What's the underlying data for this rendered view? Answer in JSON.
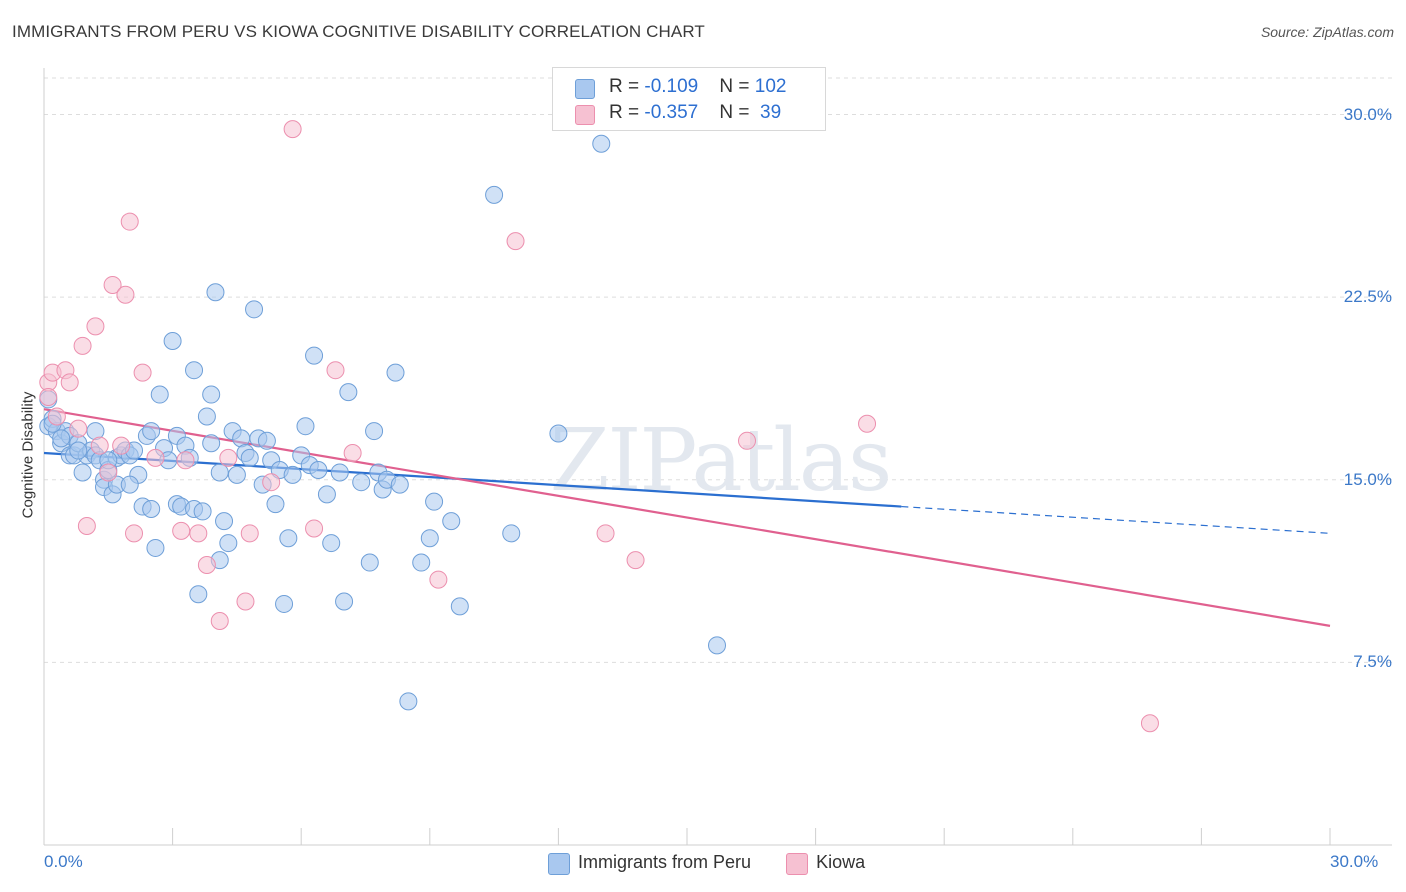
{
  "title": "IMMIGRANTS FROM PERU VS KIOWA COGNITIVE DISABILITY CORRELATION CHART",
  "source": "Source: ZipAtlas.com",
  "watermark": "ZIPatlas",
  "colors": {
    "blue_fill": "#a9c8ef",
    "blue_stroke": "#6e9fd8",
    "blue_line": "#2b6fd0",
    "pink_fill": "#f6c1d2",
    "pink_stroke": "#ec8fae",
    "pink_line": "#e0608f",
    "tick_text": "#3b78c8",
    "grid": "#dddddd"
  },
  "legend_top": {
    "rows": [
      {
        "r_label": "R = ",
        "r_value": "-0.109",
        "n_label": "N = ",
        "n_value": "102"
      },
      {
        "r_label": "R = ",
        "r_value": "-0.357",
        "n_label": "N = ",
        "n_value": " 39"
      }
    ]
  },
  "chart_data": {
    "type": "scatter",
    "title": "IMMIGRANTS FROM PERU VS KIOWA COGNITIVE DISABILITY CORRELATION CHART",
    "xlabel": "",
    "ylabel": "Cognitive Disability",
    "xlim": [
      0,
      30
    ],
    "ylim": [
      0,
      31.5
    ],
    "x_tick_labels": [
      "0.0%",
      "30.0%"
    ],
    "y_ticks": [
      7.5,
      15.0,
      22.5,
      30.0
    ],
    "y_tick_labels": [
      "7.5%",
      "15.0%",
      "22.5%",
      "30.0%"
    ],
    "grid": true,
    "legend_position": "bottom-center",
    "series": [
      {
        "name": "Immigrants from Peru",
        "color": "blue",
        "points": [
          [
            0.1,
            18.3
          ],
          [
            0.1,
            17.2
          ],
          [
            0.2,
            17.5
          ],
          [
            0.3,
            17.0
          ],
          [
            0.4,
            16.5
          ],
          [
            0.5,
            17.0
          ],
          [
            0.6,
            16.8
          ],
          [
            0.6,
            16.0
          ],
          [
            0.7,
            16.0
          ],
          [
            0.8,
            16.5
          ],
          [
            0.9,
            15.3
          ],
          [
            1.0,
            16.0
          ],
          [
            1.1,
            16.2
          ],
          [
            1.2,
            17.0
          ],
          [
            1.2,
            16.0
          ],
          [
            1.3,
            15.8
          ],
          [
            1.4,
            15.0
          ],
          [
            1.4,
            14.7
          ],
          [
            1.5,
            15.4
          ],
          [
            1.6,
            14.4
          ],
          [
            1.7,
            15.9
          ],
          [
            1.7,
            14.8
          ],
          [
            1.8,
            16.0
          ],
          [
            1.9,
            16.2
          ],
          [
            2.0,
            16.0
          ],
          [
            2.1,
            16.2
          ],
          [
            2.2,
            15.2
          ],
          [
            2.3,
            13.9
          ],
          [
            2.4,
            16.8
          ],
          [
            2.5,
            17.0
          ],
          [
            2.5,
            13.8
          ],
          [
            2.6,
            12.2
          ],
          [
            2.7,
            18.5
          ],
          [
            2.8,
            16.3
          ],
          [
            2.9,
            15.8
          ],
          [
            3.0,
            20.7
          ],
          [
            3.1,
            14.0
          ],
          [
            3.1,
            16.8
          ],
          [
            3.2,
            13.9
          ],
          [
            3.3,
            16.4
          ],
          [
            3.4,
            15.9
          ],
          [
            3.5,
            13.8
          ],
          [
            3.5,
            19.5
          ],
          [
            3.6,
            10.3
          ],
          [
            3.7,
            13.7
          ],
          [
            3.8,
            17.6
          ],
          [
            3.9,
            16.5
          ],
          [
            3.9,
            18.5
          ],
          [
            4.0,
            22.7
          ],
          [
            4.1,
            11.7
          ],
          [
            4.2,
            13.3
          ],
          [
            4.3,
            12.4
          ],
          [
            4.4,
            17.0
          ],
          [
            4.5,
            15.2
          ],
          [
            4.6,
            16.7
          ],
          [
            4.7,
            16.1
          ],
          [
            4.8,
            15.9
          ],
          [
            4.9,
            22.0
          ],
          [
            5.0,
            16.7
          ],
          [
            5.1,
            14.8
          ],
          [
            5.3,
            15.8
          ],
          [
            5.4,
            14.0
          ],
          [
            5.5,
            15.4
          ],
          [
            5.6,
            9.9
          ],
          [
            5.7,
            12.6
          ],
          [
            5.8,
            15.2
          ],
          [
            6.0,
            16.0
          ],
          [
            6.1,
            17.2
          ],
          [
            6.2,
            15.6
          ],
          [
            6.3,
            20.1
          ],
          [
            6.4,
            15.4
          ],
          [
            6.6,
            14.4
          ],
          [
            6.7,
            12.4
          ],
          [
            6.9,
            15.3
          ],
          [
            7.0,
            10.0
          ],
          [
            7.1,
            18.6
          ],
          [
            7.4,
            14.9
          ],
          [
            7.6,
            11.6
          ],
          [
            7.7,
            17.0
          ],
          [
            7.8,
            15.3
          ],
          [
            7.9,
            14.6
          ],
          [
            8.0,
            15.0
          ],
          [
            8.2,
            19.4
          ],
          [
            8.3,
            14.8
          ],
          [
            8.5,
            5.9
          ],
          [
            8.8,
            11.6
          ],
          [
            9.0,
            12.6
          ],
          [
            9.1,
            14.1
          ],
          [
            9.5,
            13.3
          ],
          [
            9.7,
            9.8
          ],
          [
            10.5,
            26.7
          ],
          [
            10.9,
            12.8
          ],
          [
            12.0,
            16.9
          ],
          [
            13.0,
            28.8
          ],
          [
            15.7,
            8.2
          ],
          [
            0.2,
            17.3
          ],
          [
            0.8,
            16.2
          ],
          [
            1.5,
            15.8
          ],
          [
            2.0,
            14.8
          ],
          [
            5.2,
            16.6
          ],
          [
            0.4,
            16.7
          ],
          [
            4.1,
            15.3
          ]
        ]
      },
      {
        "name": "Kiowa",
        "color": "pink",
        "points": [
          [
            0.1,
            19.0
          ],
          [
            0.1,
            18.4
          ],
          [
            0.2,
            19.4
          ],
          [
            0.3,
            17.6
          ],
          [
            0.5,
            19.5
          ],
          [
            0.6,
            19.0
          ],
          [
            0.8,
            17.1
          ],
          [
            0.9,
            20.5
          ],
          [
            1.0,
            13.1
          ],
          [
            1.2,
            21.3
          ],
          [
            1.3,
            16.4
          ],
          [
            1.5,
            15.3
          ],
          [
            1.6,
            23.0
          ],
          [
            1.8,
            16.4
          ],
          [
            1.9,
            22.6
          ],
          [
            2.0,
            25.6
          ],
          [
            2.1,
            12.8
          ],
          [
            2.3,
            19.4
          ],
          [
            2.6,
            15.9
          ],
          [
            3.2,
            12.9
          ],
          [
            3.3,
            15.8
          ],
          [
            3.6,
            12.8
          ],
          [
            3.8,
            11.5
          ],
          [
            4.1,
            9.2
          ],
          [
            4.3,
            15.9
          ],
          [
            4.7,
            10.0
          ],
          [
            4.8,
            12.8
          ],
          [
            5.3,
            14.9
          ],
          [
            5.8,
            29.4
          ],
          [
            6.3,
            13.0
          ],
          [
            6.8,
            19.5
          ],
          [
            7.2,
            16.1
          ],
          [
            9.2,
            10.9
          ],
          [
            11.0,
            24.8
          ],
          [
            13.1,
            12.8
          ],
          [
            13.8,
            11.7
          ],
          [
            16.4,
            16.6
          ],
          [
            19.2,
            17.3
          ],
          [
            25.8,
            5.0
          ]
        ]
      }
    ],
    "trend_lines": [
      {
        "series": "Immigrants from Peru",
        "x_start": 0.0,
        "y_start": 16.1,
        "x_end": 20.0,
        "y_end": 13.9,
        "dashed_to_x": 30.0,
        "dashed_to_y": 12.8
      },
      {
        "series": "Kiowa",
        "x_start": 0.0,
        "y_start": 17.9,
        "x_end": 30.0,
        "y_end": 9.0
      }
    ]
  },
  "legend_bottom": [
    {
      "label": "Immigrants from Peru",
      "color": "blue"
    },
    {
      "label": "Kiowa",
      "color": "pink"
    }
  ]
}
